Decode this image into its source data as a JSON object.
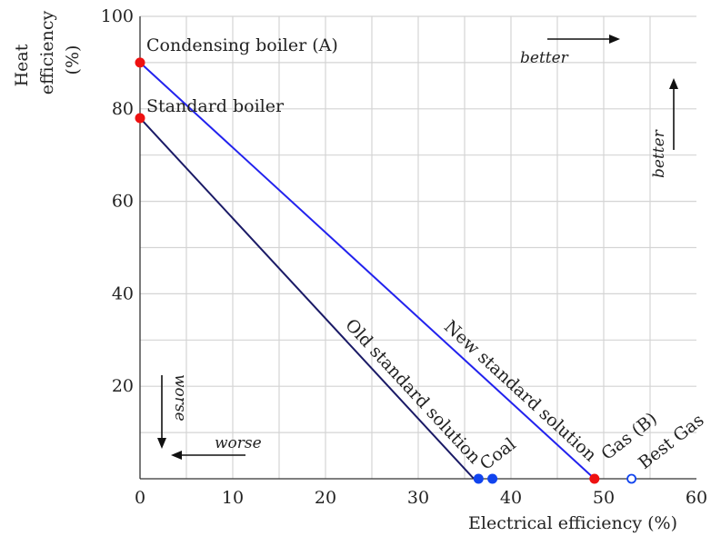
{
  "chart_data": {
    "type": "scatter",
    "xlabel": "Electrical efficiency (%)",
    "ylabel_lines": [
      "Heat",
      "efficiency",
      "(%)"
    ],
    "xlim": [
      0,
      60
    ],
    "ylim": [
      0,
      100
    ],
    "x_ticks": [
      0,
      10,
      20,
      30,
      40,
      50,
      60
    ],
    "y_ticks": [
      20,
      40,
      60,
      80,
      100
    ],
    "grid": true,
    "lines": [
      {
        "label": "New standard solution",
        "color": "#2222ee",
        "from": [
          0,
          90
        ],
        "to": [
          49,
          0
        ]
      },
      {
        "label": "Old standard solution",
        "color": "#1a1a66",
        "from": [
          0,
          78
        ],
        "to": [
          36,
          0
        ]
      }
    ],
    "points": [
      {
        "label": "Condensing boiler (A)",
        "x": 0,
        "y": 90,
        "color": "#ee1111",
        "filled": true
      },
      {
        "label": "Standard boiler",
        "x": 0,
        "y": 78,
        "color": "#ee1111",
        "filled": true
      },
      {
        "label": "Gas (B)",
        "x": 49,
        "y": 0,
        "color": "#ee1111",
        "filled": true
      },
      {
        "label": "Coal",
        "x": 36.5,
        "y": 0,
        "color": "#1144ee",
        "filled": true
      },
      {
        "label": "",
        "x": 38,
        "y": 0,
        "color": "#1144ee",
        "filled": true
      },
      {
        "label": "Best Gas",
        "x": 53,
        "y": 0,
        "color": "#1144ee",
        "filled": false
      }
    ],
    "annotations": {
      "better_x": "better",
      "better_y": "better",
      "worse_x": "worse",
      "worse_y": "worse"
    }
  }
}
